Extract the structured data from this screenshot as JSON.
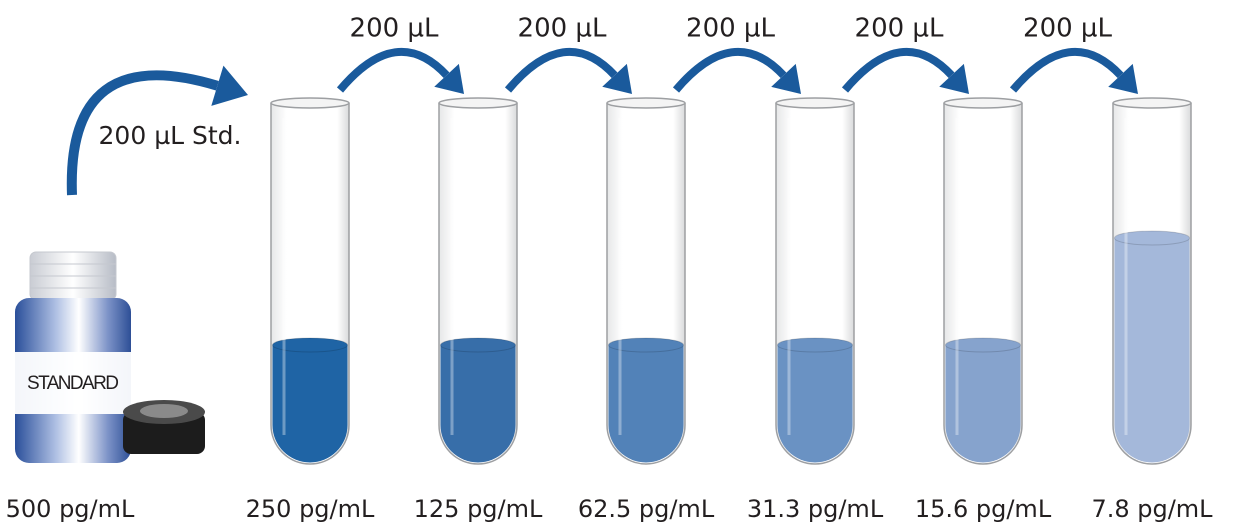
{
  "standard": {
    "label": "STANDARD",
    "concentration": "500 pg/mL",
    "transfer": "200 µL Std."
  },
  "transfers": [
    "200 µL",
    "200 µL",
    "200 µL",
    "200 µL",
    "200 µL"
  ],
  "tubes": [
    {
      "concentration": "250 pg/mL"
    },
    {
      "concentration": "125 pg/mL"
    },
    {
      "concentration": "62.5 pg/mL"
    },
    {
      "concentration": "31.3 pg/mL"
    },
    {
      "concentration": "15.6 pg/mL"
    },
    {
      "concentration": "7.8 pg/mL"
    }
  ]
}
